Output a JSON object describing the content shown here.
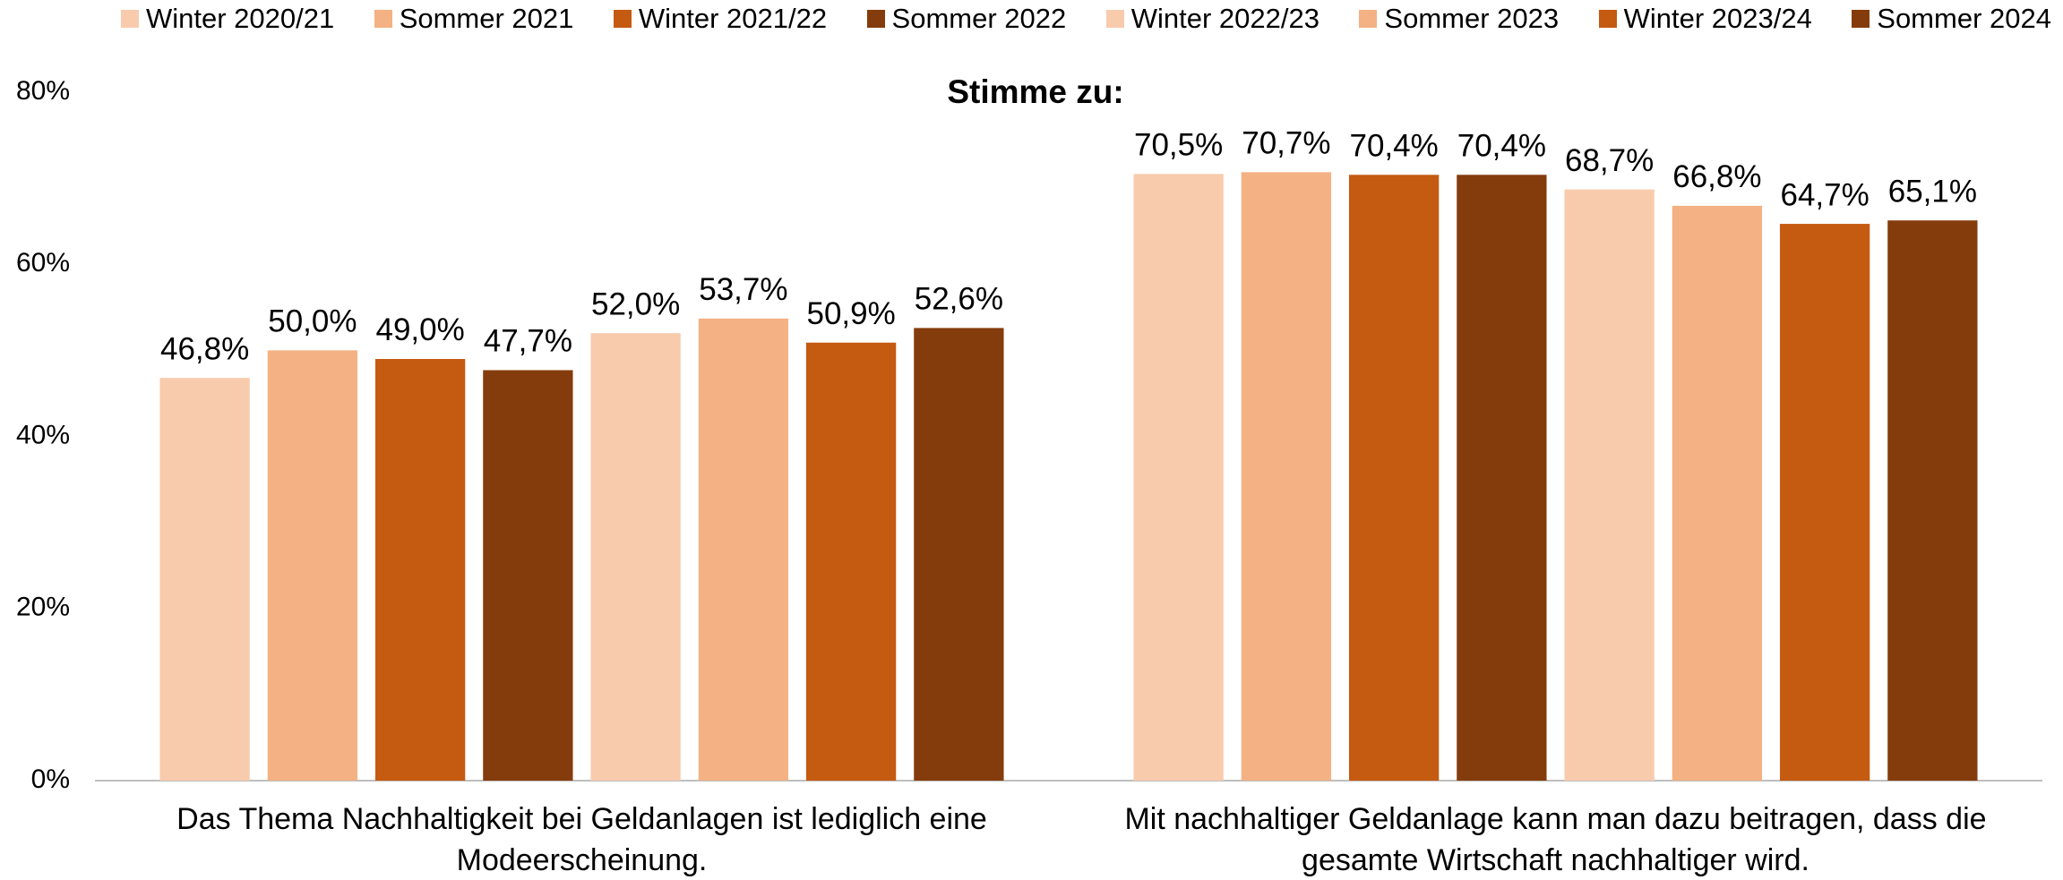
{
  "chart_data": {
    "type": "bar",
    "title": "Stimme zu:",
    "categories": [
      "Das Thema Nachhaltigkeit bei Geldanlagen ist lediglich eine Modeerscheinung.",
      "Mit nachhaltiger Geldanlage kann man dazu beitragen, dass die gesamte Wirtschaft nachhaltiger wird."
    ],
    "series": [
      {
        "name": "Winter 2020/21",
        "color": "#f8cbad",
        "values": [
          46.8,
          70.5
        ],
        "value_labels": [
          "46,8%",
          "70,5%"
        ]
      },
      {
        "name": "Sommer 2021",
        "color": "#f4b183",
        "values": [
          50.0,
          70.7
        ],
        "value_labels": [
          "50,0%",
          "70,7%"
        ]
      },
      {
        "name": "Winter 2021/22",
        "color": "#c55a11",
        "values": [
          49.0,
          70.4
        ],
        "value_labels": [
          "49,0%",
          "70,4%"
        ]
      },
      {
        "name": "Sommer 2022",
        "color": "#843c0c",
        "values": [
          47.7,
          70.4
        ],
        "value_labels": [
          "47,7%",
          "70,4%"
        ]
      },
      {
        "name": "Winter 2022/23",
        "color": "#f8cbad",
        "values": [
          52.0,
          68.7
        ],
        "value_labels": [
          "52,0%",
          "68,7%"
        ]
      },
      {
        "name": "Sommer 2023",
        "color": "#f4b183",
        "values": [
          53.7,
          66.8
        ],
        "value_labels": [
          "53,7%",
          "66,8%"
        ]
      },
      {
        "name": "Winter 2023/24",
        "color": "#c55a11",
        "values": [
          50.9,
          64.7
        ],
        "value_labels": [
          "50,9%",
          "64,7%"
        ]
      },
      {
        "name": "Sommer 2024",
        "color": "#843c0c",
        "values": [
          52.6,
          65.1
        ],
        "value_labels": [
          "52,6%",
          "65,1%"
        ]
      }
    ],
    "ylim": [
      0,
      80
    ],
    "yticks": [
      {
        "value": 0,
        "label": "0%"
      },
      {
        "value": 20,
        "label": "20%"
      },
      {
        "value": 40,
        "label": "40%"
      },
      {
        "value": 60,
        "label": "60%"
      },
      {
        "value": 80,
        "label": "80%"
      }
    ],
    "legend": "top",
    "grid": false
  }
}
